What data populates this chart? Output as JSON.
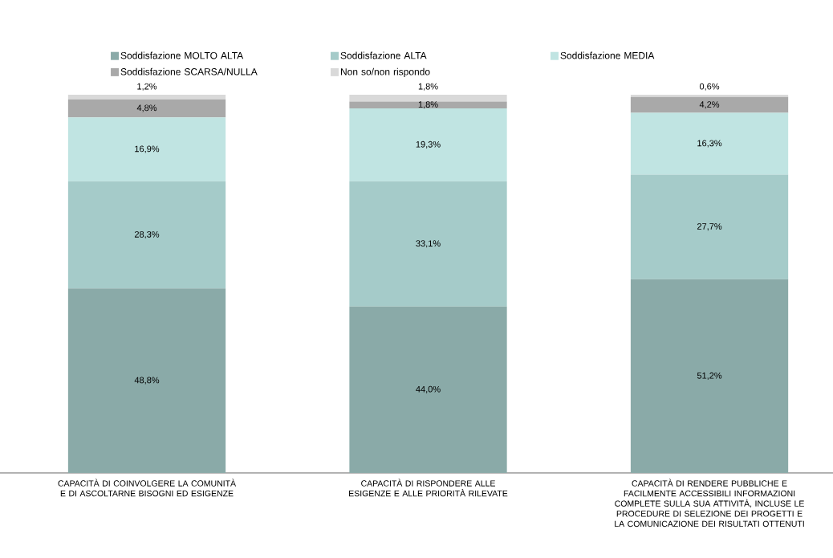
{
  "chart_data": {
    "type": "bar",
    "stacked": true,
    "legend": "top",
    "tick_labels": "x",
    "ylim": [
      0,
      100
    ],
    "categories": [
      "CAPACITÀ DI COINVOLGERE LA COMUNITÀ E DI ASCOLTARNE BISOGNI ED ESIGENZE",
      "CAPACITÀ DI RISPONDERE ALLE ESIGENZE E ALLE PRIORITÀ RILEVATE",
      "CAPACITÀ DI RENDERE PUBBLICHE E FACILMENTE ACCESSIBILI INFORMAZIONI COMPLETE SULLA SUA ATTIVITÀ, INCLUSE LE PROCEDURE DI SELEZIONE DEI PROGETTI E LA COMUNICAZIONE DEI RISULTATI OTTENUTI"
    ],
    "series": [
      {
        "name": "Soddisfazione MOLTO ALTA",
        "color": "#8aaaa8",
        "values": [
          48.8,
          44.0,
          51.2
        ],
        "value_labels": [
          "48,8%",
          "44,0%",
          "51,2%"
        ]
      },
      {
        "name": "Soddisfazione ALTA",
        "color": "#a5cbc9",
        "values": [
          28.3,
          33.1,
          27.7
        ],
        "value_labels": [
          "28,3%",
          "33,1%",
          "27,7%"
        ]
      },
      {
        "name": "Soddisfazione MEDIA",
        "color": "#c0e4e2",
        "values": [
          16.9,
          19.3,
          16.3
        ],
        "value_labels": [
          "16,9%",
          "19,3%",
          "16,3%"
        ]
      },
      {
        "name": "Soddisfazione SCARSA/NULLA",
        "color": "#a9a9a9",
        "values": [
          4.8,
          1.8,
          4.2
        ],
        "value_labels": [
          "4,8%",
          "1,8%",
          "4,2%"
        ]
      },
      {
        "name": "Non so/non rispondo",
        "color": "#d9d9d9",
        "values": [
          1.2,
          1.8,
          0.6
        ],
        "value_labels": [
          "1,2%",
          "1,8%",
          "0,6%"
        ]
      }
    ]
  }
}
